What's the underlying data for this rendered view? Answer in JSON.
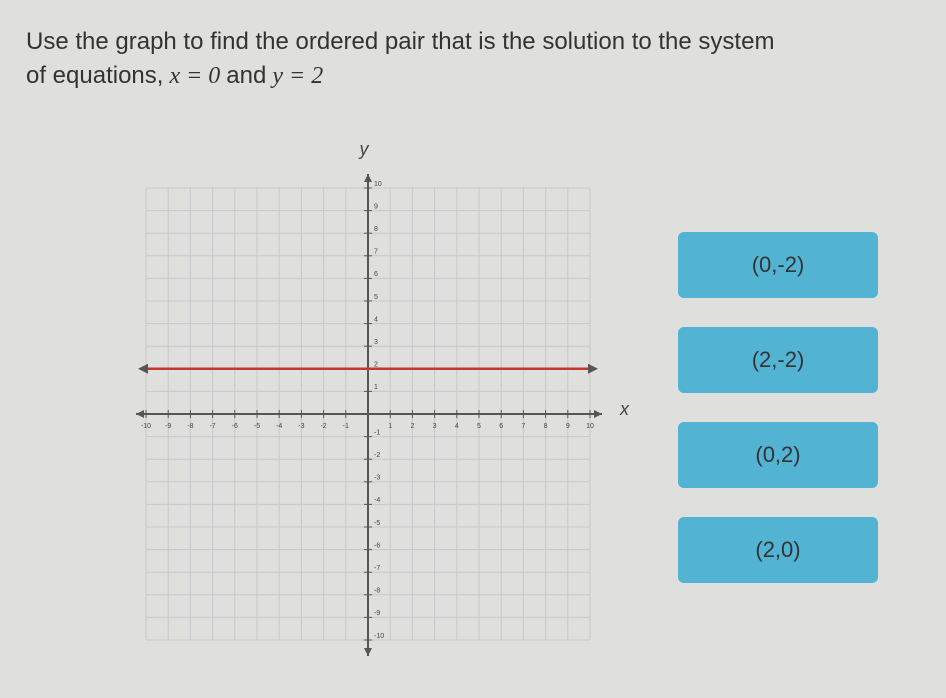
{
  "question": {
    "line1": "Use the graph to find the ordered pair that is the solution to the system",
    "line2": "of equations,",
    "eq1": "x = 0",
    "and": "and",
    "eq2": "y = 2"
  },
  "graph": {
    "x_label": "x",
    "y_label": "y",
    "xlim": [
      -10,
      10
    ],
    "ylim": [
      -10,
      10
    ],
    "xticks": [
      -10,
      -9,
      -8,
      -7,
      -6,
      -5,
      -4,
      -3,
      -2,
      -1,
      1,
      2,
      3,
      4,
      5,
      6,
      7,
      8,
      9,
      10
    ],
    "yticks": [
      -10,
      -9,
      -8,
      -7,
      -6,
      -5,
      -4,
      -3,
      -2,
      -1,
      1,
      2,
      3,
      4,
      5,
      6,
      7,
      8,
      9,
      10
    ],
    "line_y": 2,
    "line_color": "#c0392b"
  },
  "options": [
    "(0,-2)",
    "(2,-2)",
    "(0,2)",
    "(2,0)"
  ]
}
